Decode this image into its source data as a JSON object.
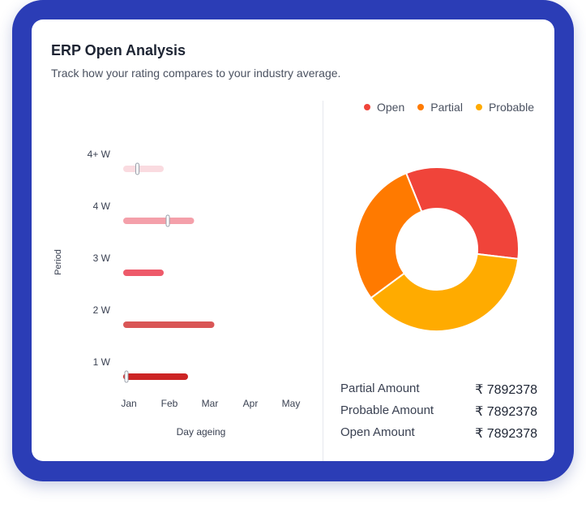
{
  "card": {
    "title": "ERP Open Analysis",
    "subtitle": "Track how your rating compares to your industry average."
  },
  "legend": [
    {
      "label": "Open",
      "color": "#f0443a"
    },
    {
      "label": "Partial",
      "color": "#ff7a00"
    },
    {
      "label": "Probable",
      "color": "#ffab00"
    }
  ],
  "amounts": [
    {
      "label": "Partial Amount",
      "value": "₹ 7892378"
    },
    {
      "label": "Probable Amount",
      "value": "₹ 7892378"
    },
    {
      "label": "Open Amount",
      "value": "₹ 7892378"
    }
  ],
  "chart_data": [
    {
      "type": "bar",
      "orientation": "horizontal",
      "xlabel": "Day ageing",
      "ylabel": "Period",
      "x_ticks": [
        "Jan",
        "Feb",
        "Mar",
        "Apr",
        "May"
      ],
      "categories": [
        "4+ W",
        "4 W",
        "3 W",
        "2 W",
        "1 W"
      ],
      "bars": [
        {
          "start": 0,
          "end": 1,
          "marker": 0.35,
          "color": "#fadbe0"
        },
        {
          "start": 0,
          "end": 1.75,
          "marker": 1.1,
          "color": "#f4a0aa"
        },
        {
          "start": 0,
          "end": 1,
          "color": "#ee5a6a"
        },
        {
          "start": 0,
          "end": 2.25,
          "color": "#d95656"
        },
        {
          "start": 0,
          "end": 1.6,
          "marker": 0.08,
          "color": "#cc2424"
        }
      ]
    },
    {
      "type": "pie",
      "variant": "donut",
      "labels": [
        "Open",
        "Probable",
        "Partial"
      ],
      "values": [
        33,
        38,
        29
      ],
      "colors": [
        "#f0443a",
        "#ffab00",
        "#ff7a00"
      ]
    }
  ]
}
